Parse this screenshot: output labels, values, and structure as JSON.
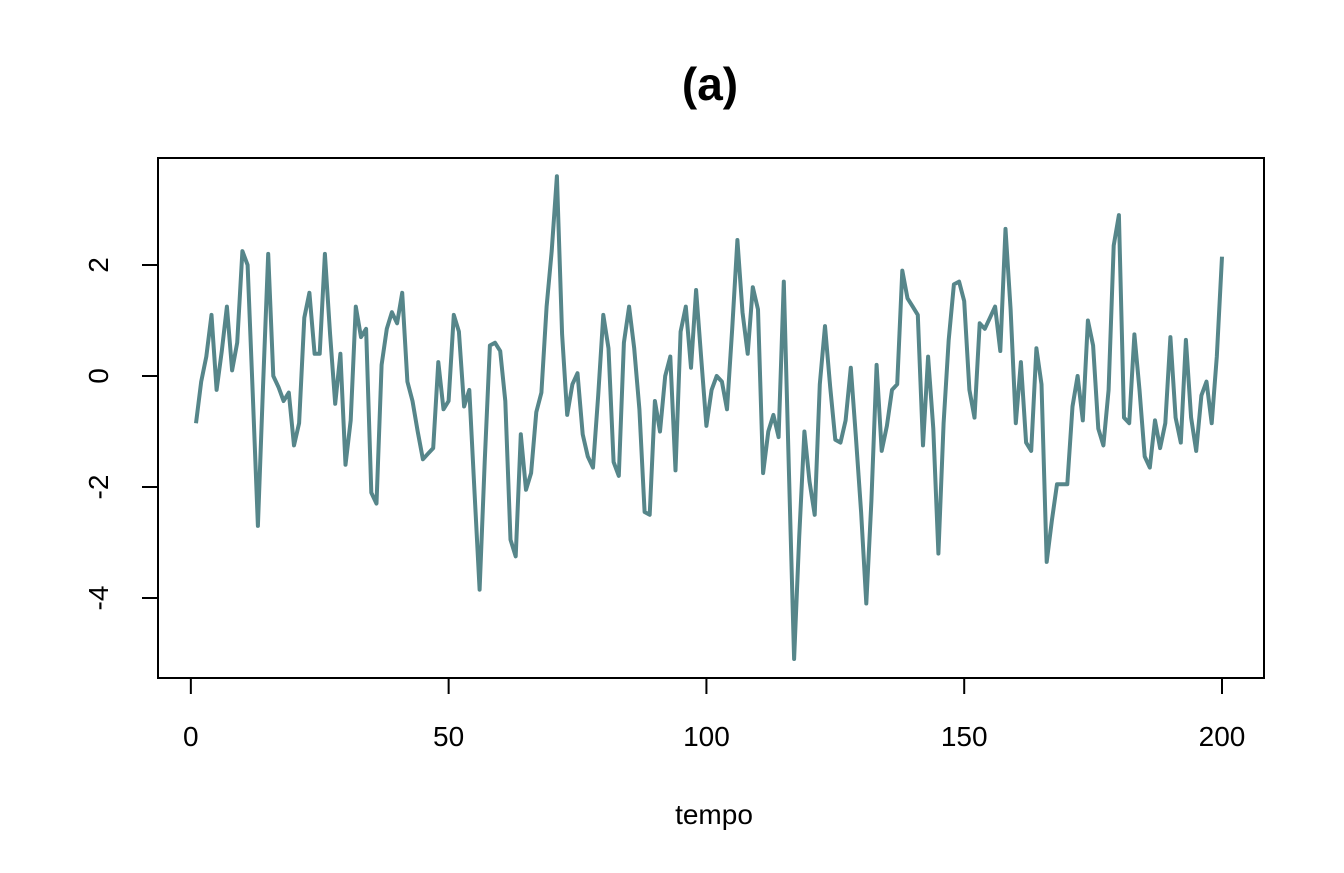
{
  "chart_data": {
    "type": "line",
    "title": "(a)",
    "xlabel": "tempo",
    "ylabel": "",
    "xlim": [
      1,
      200
    ],
    "ylim": [
      -5.1,
      3.6
    ],
    "xticks": [
      0,
      50,
      100,
      150,
      200
    ],
    "yticks": [
      -4,
      -2,
      0,
      2
    ],
    "line_color": "#56868a",
    "grid": false,
    "series": [
      {
        "x": [
          1,
          2,
          3,
          4,
          5,
          6,
          7,
          8,
          9,
          10,
          11,
          12,
          13,
          14,
          15,
          16,
          17,
          18,
          19,
          20,
          21,
          22,
          23,
          24,
          25,
          26,
          27,
          28,
          29,
          30,
          31,
          32,
          33,
          34,
          35,
          36,
          37,
          38,
          39,
          40,
          41,
          42,
          43,
          44,
          45,
          46,
          47,
          48,
          49,
          50,
          51,
          52,
          53,
          54,
          55,
          56,
          57,
          58,
          59,
          60,
          61,
          62,
          63,
          64,
          65,
          66,
          67,
          68,
          69,
          70,
          71,
          72,
          73,
          74,
          75,
          76,
          77,
          78,
          79,
          80,
          81,
          82,
          83,
          84,
          85,
          86,
          87,
          88,
          89,
          90,
          91,
          92,
          93,
          94,
          95,
          96,
          97,
          98,
          99,
          100,
          101,
          102,
          103,
          104,
          105,
          106,
          107,
          108,
          109,
          110,
          111,
          112,
          113,
          114,
          115,
          116,
          117,
          118,
          119,
          120,
          121,
          122,
          123,
          124,
          125,
          126,
          127,
          128,
          129,
          130,
          131,
          132,
          133,
          134,
          135,
          136,
          137,
          138,
          139,
          140,
          141,
          142,
          143,
          144,
          145,
          146,
          147,
          148,
          149,
          150,
          151,
          152,
          153,
          154,
          155,
          156,
          157,
          158,
          159,
          160,
          161,
          162,
          163,
          164,
          165,
          166,
          167,
          168,
          169,
          170,
          171,
          172,
          173,
          174,
          175,
          176,
          177,
          178,
          179,
          180,
          181,
          182,
          183,
          184,
          185,
          186,
          187,
          188,
          189,
          190,
          191,
          192,
          193,
          194,
          195,
          196,
          197,
          198,
          199,
          200
        ],
        "values": [
          -0.85,
          -0.1,
          0.35,
          1.1,
          -0.25,
          0.45,
          1.25,
          0.1,
          0.6,
          2.25,
          2.0,
          -0.3,
          -2.7,
          -0.2,
          2.2,
          0.0,
          -0.2,
          -0.45,
          -0.3,
          -1.25,
          -0.85,
          1.05,
          1.5,
          0.4,
          0.4,
          2.2,
          0.75,
          -0.5,
          0.4,
          -1.6,
          -0.8,
          1.25,
          0.7,
          0.85,
          -2.1,
          -2.3,
          0.2,
          0.85,
          1.15,
          0.95,
          1.5,
          -0.1,
          -0.45,
          -1.0,
          -1.5,
          -1.4,
          -1.3,
          0.25,
          -0.6,
          -0.45,
          1.1,
          0.8,
          -0.55,
          -0.25,
          -2.05,
          -3.85,
          -1.55,
          0.55,
          0.6,
          0.45,
          -0.45,
          -2.95,
          -3.25,
          -1.05,
          -2.05,
          -1.75,
          -0.65,
          -0.3,
          1.25,
          2.25,
          3.6,
          0.75,
          -0.7,
          -0.15,
          0.05,
          -1.05,
          -1.45,
          -1.65,
          -0.35,
          1.1,
          0.5,
          -1.55,
          -1.8,
          0.6,
          1.25,
          0.5,
          -0.6,
          -2.45,
          -2.5,
          -0.45,
          -1.0,
          0.0,
          0.35,
          -1.7,
          0.8,
          1.25,
          0.15,
          1.55,
          0.3,
          -0.9,
          -0.25,
          0.0,
          -0.1,
          -0.6,
          0.85,
          2.45,
          1.15,
          0.4,
          1.6,
          1.2,
          -1.75,
          -1.0,
          -0.7,
          -1.1,
          1.7,
          -1.7,
          -5.1,
          -2.9,
          -1.0,
          -1.9,
          -2.5,
          -0.15,
          0.9,
          -0.2,
          -1.15,
          -1.2,
          -0.8,
          0.15,
          -1.1,
          -2.45,
          -4.1,
          -2.25,
          0.2,
          -1.35,
          -0.9,
          -0.25,
          -0.15,
          1.9,
          1.4,
          1.25,
          1.1,
          -1.25,
          0.35,
          -0.95,
          -3.2,
          -0.85,
          0.65,
          1.65,
          1.7,
          1.35,
          -0.25,
          -0.75,
          0.95,
          0.85,
          1.05,
          1.25,
          0.45,
          2.65,
          1.2,
          -0.85,
          0.25,
          -1.2,
          -1.35,
          0.5,
          -0.15,
          -3.35,
          -2.6,
          -1.95,
          -1.95,
          -1.95,
          -0.55,
          -0.0,
          -0.8,
          1.0,
          0.55,
          -0.95,
          -1.25,
          -0.25,
          2.35,
          2.9,
          -0.75,
          -0.85,
          0.75,
          -0.25,
          -1.45,
          -1.65,
          -0.8,
          -1.3,
          -0.85,
          0.7,
          -0.75,
          -1.2,
          0.65,
          -0.75,
          -1.35,
          -0.35,
          -0.1,
          -0.85,
          0.35,
          2.15
        ]
      }
    ]
  }
}
